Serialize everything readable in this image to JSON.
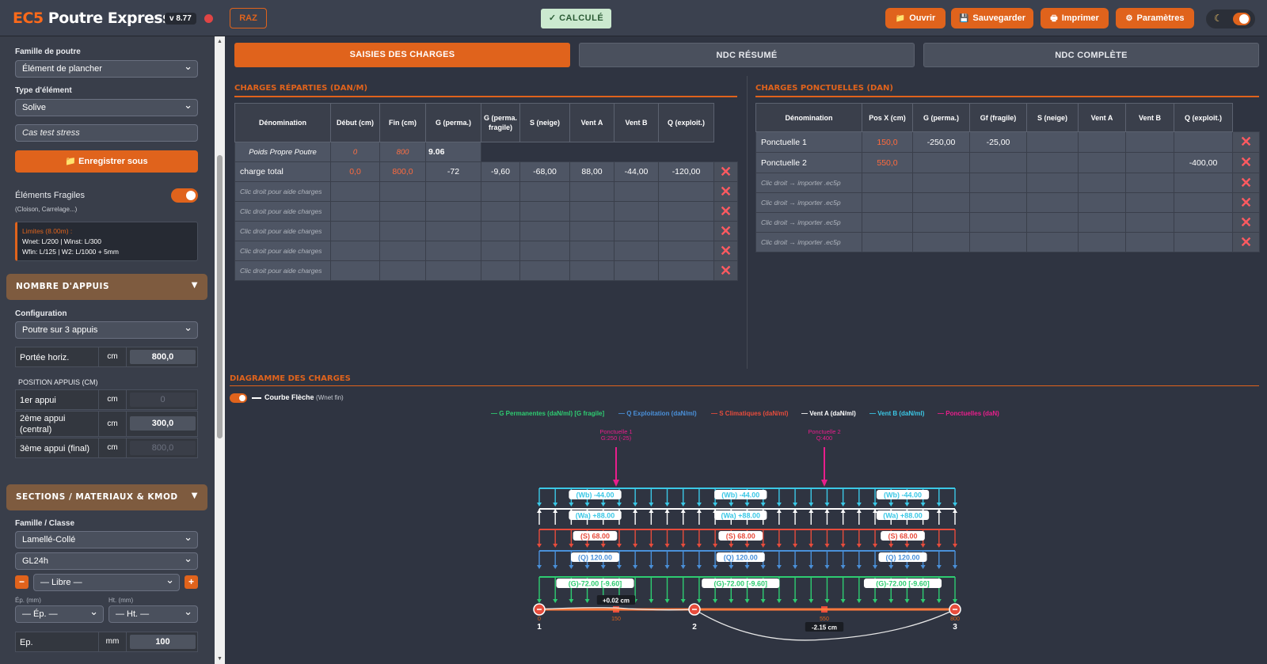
{
  "app": {
    "logo_prefix": "EC5",
    "logo_name": "Poutre Express",
    "version": "v 8.77"
  },
  "toolbar": {
    "raz": "RAZ",
    "calcule": "✓ CALCULÉ",
    "ouvrir": "Ouvrir",
    "sauvegarder": "Sauvegarder",
    "imprimer": "Imprimer",
    "parametres": "Paramètres"
  },
  "sidebar": {
    "famille_label": "Famille de poutre",
    "famille_value": "Élément de plancher",
    "type_label": "Type d'élément",
    "type_value": "Solive",
    "case_name": "Cas test stress",
    "save_as": "Enregistrer sous",
    "fragile_label": "Éléments Fragiles",
    "fragile_sub": "(Cloison, Carrelage...)",
    "limits_title": "Limites (8.00m) :",
    "limits_line1": "Wnet: L/200 | Winst: L/300",
    "limits_line2": "Wfin: L/125 | W2: L/1000 + 5mm",
    "appuis_header": "NOMBRE D'APPUIS",
    "config_label": "Configuration",
    "config_value": "Poutre sur 3 appuis",
    "portee_label": "Portée horiz.",
    "portee_unit": "cm",
    "portee_value": "800,0",
    "position_label": "POSITION APPUIS (CM)",
    "appui1_label": "1er appui",
    "appui1_unit": "cm",
    "appui1_value": "0",
    "appui2_label": "2ème appui (central)",
    "appui2_unit": "cm",
    "appui2_value": "300,0",
    "appui3_label": "3ème appui (final)",
    "appui3_unit": "cm",
    "appui3_value": "800,0",
    "sections_header": "SECTIONS / MATERIAUX & KMOD",
    "classe_label": "Famille / Classe",
    "materiau_value": "Lamellé-Collé",
    "grade_value": "GL24h",
    "libre_value": "— Libre —",
    "ep_small": "Ép. (mm)",
    "ht_small": "Ht. (mm)",
    "ep_select": "— Ép. —",
    "ht_select": "— Ht. —",
    "ep_label": "Ep.",
    "ep_unit": "mm",
    "ep_value": "100"
  },
  "tabs": [
    "SAISIES DES CHARGES",
    "NDC RÉSUMÉ",
    "NDC COMPLÈTE"
  ],
  "reparties": {
    "title": "CHARGES RÉPARTIES (DAN/M)",
    "headers": [
      "Dénomination",
      "Début (cm)",
      "Fin (cm)",
      "G (perma.)",
      "G (perma. fragile)",
      "S (neige)",
      "Vent A",
      "Vent B",
      "Q (exploit.)"
    ],
    "pp": {
      "name": "Poids Propre Poutre",
      "debut": "0",
      "fin": "800",
      "g": "9.06"
    },
    "rows": [
      {
        "name": "charge total",
        "debut": "0,0",
        "fin": "800,0",
        "g": "-72",
        "gf": "-9,60",
        "s": "-68,00",
        "va": "88,00",
        "vb": "-44,00",
        "q": "-120,00"
      }
    ],
    "hint": "Clic droit pour aide charges"
  },
  "ponctuelles": {
    "title": "CHARGES PONCTUELLES (DAN)",
    "headers": [
      "Dénomination",
      "Pos X (cm)",
      "G (perma.)",
      "Gf (fragile)",
      "S (neige)",
      "Vent A",
      "Vent B",
      "Q (exploit.)"
    ],
    "rows": [
      {
        "name": "Ponctuelle 1",
        "pos": "150,0",
        "g": "-250,00",
        "gf": "-25,00",
        "q": ""
      },
      {
        "name": "Ponctuelle 2",
        "pos": "550,0",
        "g": "",
        "gf": "",
        "q": "-400,00"
      }
    ],
    "hint": "Clic droit → importer .ec5p"
  },
  "diagram": {
    "title": "DIAGRAMME DES CHARGES",
    "curve_label": "Courbe Flèche",
    "curve_sub": "(Wnet fin)",
    "legend": [
      "G Permanentes (daN/ml) [G fragile]",
      "Q Exploitation (daN/ml)",
      "S Climatiques (daN/ml)",
      "Vent A (daN/ml)",
      "Vent B (daN/ml)",
      "Ponctuelles (daN)"
    ],
    "p1_name": "Ponctuelle 1",
    "p1_val": "G:250 (-25)",
    "p2_name": "Ponctuelle 2",
    "p2_val": "Q:400",
    "wb": "(Wb) -44.00",
    "wa": "(Wa) +88.00",
    "s": "(S) 68.00",
    "q": "(Q) 120.00",
    "g": "(G)-72.00 [-9.60]",
    "defl1": "+0.02 cm",
    "defl2": "-2.15 cm",
    "supports": [
      "1",
      "2",
      "3"
    ],
    "pos": [
      "0",
      "150",
      "550",
      "800"
    ]
  },
  "colors": {
    "accent": "#e0631c",
    "g": "#2ecc71",
    "q": "#4a90d9",
    "s": "#e74c3c",
    "wa": "#ffffff",
    "wb": "#3bc8e6",
    "punct": "#e91e8c"
  }
}
